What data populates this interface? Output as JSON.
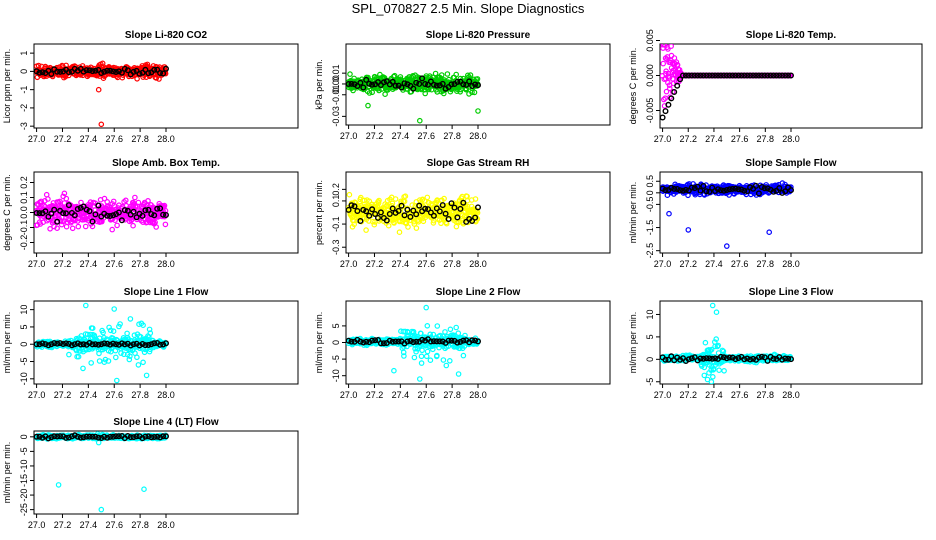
{
  "title": "SPL_070827  2.5 Min. Slope Diagnostics",
  "chart_data": [
    {
      "id": "co2",
      "type": "scatter",
      "title": "Slope Li-820 CO2",
      "ylabel": "Licor ppm per min.",
      "color": "#ff0000",
      "xlim": [
        26.98,
        29.02
      ],
      "ylim": [
        -3.1,
        1.5
      ],
      "xticks": [
        "27.0",
        "27.2",
        "27.4",
        "27.6",
        "27.8",
        "28.0"
      ],
      "yticks": [
        "-3",
        "-2",
        "-1",
        "0",
        "1"
      ],
      "spread": 0.3,
      "bias": 0,
      "black_spread": 0.15,
      "outliers": [
        [
          27.5,
          -2.9
        ],
        [
          27.48,
          -1.0
        ]
      ]
    },
    {
      "id": "pressure",
      "type": "scatter",
      "title": "Slope Li-820 Pressure",
      "ylabel": "kPa per min.",
      "color": "#00cc00",
      "xlim": [
        26.98,
        29.02
      ],
      "ylim": [
        -0.038,
        0.037
      ],
      "xticks": [
        "27.0",
        "27.2",
        "27.4",
        "27.6",
        "27.8",
        "28.0"
      ],
      "yticks": [
        "-0.03",
        "-0.01",
        "0.00",
        "0.01"
      ],
      "spread": 0.007,
      "bias": 0,
      "black_spread": 0.004,
      "outliers": [
        [
          27.55,
          -0.034
        ],
        [
          28.0,
          -0.025
        ],
        [
          27.15,
          -0.02
        ]
      ]
    },
    {
      "id": "temp",
      "type": "scatter",
      "title": "Slope Li-820 Temp.",
      "ylabel": "degrees C per min.",
      "color": "#ff00ff",
      "xlim": [
        26.98,
        29.02
      ],
      "ylim": [
        -0.0075,
        0.0045
      ],
      "xticks": [
        "27.0",
        "27.2",
        "27.4",
        "27.6",
        "27.8",
        "28.0"
      ],
      "yticks": [
        "-0.005",
        "0.000",
        "0.005"
      ],
      "spread": 0,
      "bias": 0,
      "black_spread": 0,
      "decay": true,
      "outliers": []
    },
    {
      "id": "ambbox",
      "type": "scatter",
      "title": "Slope Amb. Box Temp.",
      "ylabel": "degrees C per min.",
      "color": "#ff00ff",
      "xlim": [
        26.98,
        29.02
      ],
      "ylim": [
        -0.27,
        0.27
      ],
      "xticks": [
        "27.0",
        "27.2",
        "27.4",
        "27.6",
        "27.8",
        "28.0"
      ],
      "yticks": [
        "-0.2",
        "-0.1",
        "0.0",
        "0.1",
        "0.2"
      ],
      "spread": 0.08,
      "bias": 0,
      "black_spread": 0.05,
      "outliers": []
    },
    {
      "id": "rh",
      "type": "scatter",
      "title": "Slope Gas Stream RH",
      "ylabel": "percent per min.",
      "color": "#ffff00",
      "xlim": [
        26.98,
        29.02
      ],
      "ylim": [
        -0.35,
        0.35
      ],
      "xticks": [
        "27.0",
        "27.2",
        "27.4",
        "27.6",
        "27.8",
        "28.0"
      ],
      "yticks": [
        "-0.3",
        "-0.1",
        "0.1",
        "0.2"
      ],
      "spread": 0.11,
      "bias": 0,
      "black_spread": 0.08,
      "outliers": []
    },
    {
      "id": "sample",
      "type": "scatter",
      "title": "Slope Sample Flow",
      "ylabel": "ml/min per min.",
      "color": "#0000ff",
      "xlim": [
        26.98,
        29.02
      ],
      "ylim": [
        -2.6,
        0.9
      ],
      "xticks": [
        "27.0",
        "27.2",
        "27.4",
        "27.6",
        "27.8",
        "28.0"
      ],
      "yticks": [
        "-2.5",
        "-1.5",
        "-0.5",
        "0",
        "0.5"
      ],
      "spread": 0.18,
      "bias": 0.15,
      "black_spread": 0.12,
      "outliers": [
        [
          27.5,
          -2.3
        ],
        [
          27.83,
          -1.7
        ],
        [
          27.2,
          -1.6
        ],
        [
          27.05,
          -0.9
        ]
      ]
    },
    {
      "id": "line1",
      "type": "scatter",
      "title": "Slope Line 1 Flow",
      "ylabel": "ml/min per min.",
      "color": "#00ffff",
      "xlim": [
        26.98,
        29.02
      ],
      "ylim": [
        -11.5,
        12.5
      ],
      "xticks": [
        "27.0",
        "27.2",
        "27.4",
        "27.6",
        "27.8",
        "28.0"
      ],
      "yticks": [
        "-10",
        "-5",
        "0",
        "5",
        "10"
      ],
      "spread": 0.8,
      "bias": 0,
      "black_spread": 0.3,
      "burst": [
        27.3,
        27.9,
        5.5
      ],
      "outliers": [
        [
          27.38,
          11.2
        ],
        [
          27.6,
          10.2
        ],
        [
          27.62,
          -10.5
        ],
        [
          27.85,
          -9.0
        ],
        [
          27.25,
          -3.0
        ]
      ]
    },
    {
      "id": "line2",
      "type": "scatter",
      "title": "Slope Line 2 Flow",
      "ylabel": "ml/min per min.",
      "color": "#00ffff",
      "xlim": [
        26.98,
        29.02
      ],
      "ylim": [
        -12.5,
        12.5
      ],
      "xticks": [
        "27.0",
        "27.2",
        "27.4",
        "27.6",
        "27.8",
        "28.0"
      ],
      "yticks": [
        "-10",
        "-5",
        "0",
        "5"
      ],
      "spread": 0.8,
      "bias": 0.3,
      "black_spread": 0.5,
      "burst": [
        27.4,
        27.9,
        5.0
      ],
      "outliers": [
        [
          27.6,
          10.5
        ],
        [
          27.35,
          -8.5
        ],
        [
          27.55,
          -11.0
        ],
        [
          27.85,
          -9.5
        ]
      ]
    },
    {
      "id": "line3",
      "type": "scatter",
      "title": "Slope Line 3 Flow",
      "ylabel": "ml/min per min.",
      "color": "#00ffff",
      "xlim": [
        26.98,
        29.02
      ],
      "ylim": [
        -5.5,
        13
      ],
      "xticks": [
        "27.0",
        "27.2",
        "27.4",
        "27.6",
        "27.8",
        "28.0"
      ],
      "yticks": [
        "-5",
        "0",
        "5",
        "10"
      ],
      "spread": 0.6,
      "bias": 0.2,
      "black_spread": 0.5,
      "burst": [
        27.3,
        27.48,
        4.5
      ],
      "outliers": [
        [
          27.39,
          12.0
        ],
        [
          27.42,
          10.5
        ],
        [
          27.35,
          -4.5
        ],
        [
          27.38,
          -5.0
        ]
      ]
    },
    {
      "id": "line4",
      "type": "scatter",
      "title": "Slope Line 4 (LT) Flow",
      "ylabel": "ml/min per min.",
      "color": "#00ffff",
      "xlim": [
        26.98,
        29.02
      ],
      "ylim": [
        -26.5,
        2
      ],
      "xticks": [
        "27.0",
        "27.2",
        "27.4",
        "27.6",
        "27.8",
        "28.0"
      ],
      "yticks": [
        "-25",
        "-20",
        "-15",
        "-10",
        "-5",
        "0"
      ],
      "spread": 0.6,
      "bias": 0,
      "black_spread": 0.4,
      "outliers": [
        [
          27.17,
          -16.5
        ],
        [
          27.83,
          -18.0
        ],
        [
          27.5,
          -25.0
        ],
        [
          27.48,
          -2.0
        ]
      ]
    }
  ]
}
